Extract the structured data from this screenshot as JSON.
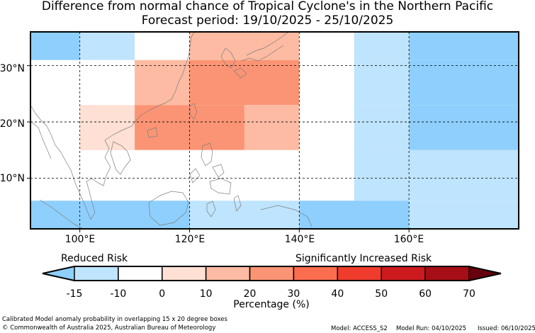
{
  "title": {
    "line1": "Difference from normal chance of Tropical Cyclone's in the Northern Pacific",
    "line2": "Forecast period: 19/10/2025 - 25/10/2025"
  },
  "map": {
    "lat_labels": [
      "30°N",
      "20°N",
      "10°N"
    ],
    "lon_labels": [
      "100°E",
      "120°E",
      "140°E",
      "160°E"
    ],
    "lon_range": [
      91,
      180
    ],
    "lat_range": [
      1,
      36
    ],
    "cells": [
      {
        "lon": [
          91,
          100
        ],
        "lat": [
          31,
          36
        ],
        "bin": -15
      },
      {
        "lon": [
          100,
          110
        ],
        "lat": [
          31,
          36
        ],
        "bin": -10
      },
      {
        "lon": [
          110,
          120
        ],
        "lat": [
          31,
          36
        ],
        "bin": 0
      },
      {
        "lon": [
          120,
          140
        ],
        "lat": [
          31,
          36
        ],
        "bin": 10
      },
      {
        "lon": [
          140,
          150
        ],
        "lat": [
          31,
          36
        ],
        "bin": 0
      },
      {
        "lon": [
          150,
          160
        ],
        "lat": [
          31,
          36
        ],
        "bin": -10
      },
      {
        "lon": [
          160,
          180
        ],
        "lat": [
          31,
          36
        ],
        "bin": -15
      },
      {
        "lon": [
          100,
          110
        ],
        "lat": [
          23,
          31
        ],
        "bin": 0
      },
      {
        "lon": [
          110,
          120
        ],
        "lat": [
          23,
          31
        ],
        "bin": 10
      },
      {
        "lon": [
          120,
          140
        ],
        "lat": [
          23,
          31
        ],
        "bin": 20
      },
      {
        "lon": [
          140,
          150
        ],
        "lat": [
          23,
          31
        ],
        "bin": 0
      },
      {
        "lon": [
          150,
          160
        ],
        "lat": [
          23,
          31
        ],
        "bin": -10
      },
      {
        "lon": [
          160,
          180
        ],
        "lat": [
          23,
          31
        ],
        "bin": -15
      },
      {
        "lon": [
          91,
          100
        ],
        "lat": [
          18,
          23
        ],
        "bin": 0
      },
      {
        "lon": [
          100,
          110
        ],
        "lat": [
          18,
          23
        ],
        "bin": 10
      },
      {
        "lon": [
          110,
          130
        ],
        "lat": [
          18,
          23
        ],
        "bin": 20
      },
      {
        "lon": [
          130,
          140
        ],
        "lat": [
          18,
          23
        ],
        "bin": 10
      },
      {
        "lon": [
          140,
          150
        ],
        "lat": [
          18,
          23
        ],
        "bin": 0
      },
      {
        "lon": [
          150,
          160
        ],
        "lat": [
          18,
          23
        ],
        "bin": -10
      },
      {
        "lon": [
          160,
          180
        ],
        "lat": [
          18,
          23
        ],
        "bin": -15
      },
      {
        "lon": [
          91,
          100
        ],
        "lat": [
          15,
          18
        ],
        "bin": 0
      },
      {
        "lon": [
          100,
          110
        ],
        "lat": [
          15,
          18
        ],
        "bin": 10
      },
      {
        "lon": [
          110,
          130
        ],
        "lat": [
          15,
          18
        ],
        "bin": 20
      },
      {
        "lon": [
          130,
          140
        ],
        "lat": [
          15,
          18
        ],
        "bin": 10
      },
      {
        "lon": [
          140,
          150
        ],
        "lat": [
          15,
          18
        ],
        "bin": 0
      },
      {
        "lon": [
          150,
          160
        ],
        "lat": [
          15,
          18
        ],
        "bin": -10
      },
      {
        "lon": [
          160,
          180
        ],
        "lat": [
          15,
          18
        ],
        "bin": -15
      },
      {
        "lon": [
          110,
          140
        ],
        "lat": [
          6,
          15
        ],
        "bin": 0
      },
      {
        "lon": [
          150,
          160
        ],
        "lat": [
          6,
          15
        ],
        "bin": -10
      },
      {
        "lon": [
          160,
          180
        ],
        "lat": [
          6,
          15
        ],
        "bin": -10
      },
      {
        "lon": [
          91,
          120
        ],
        "lat": [
          1,
          6
        ],
        "bin": -15
      },
      {
        "lon": [
          120,
          140
        ],
        "lat": [
          1,
          6
        ],
        "bin": -10
      },
      {
        "lon": [
          140,
          160
        ],
        "lat": [
          1,
          6
        ],
        "bin": -15
      },
      {
        "lon": [
          160,
          180
        ],
        "lat": [
          1,
          6
        ],
        "bin": -10
      }
    ]
  },
  "legend": {
    "left_caption": "Reduced Risk",
    "right_caption": "Significantly Increased Risk",
    "ticks": [
      "-15",
      "-10",
      "0",
      "10",
      "20",
      "30",
      "40",
      "50",
      "60",
      "70"
    ],
    "label": "Percentage (%)",
    "colors": {
      "-15": "#8ecffd",
      "-10": "#bfe4fd",
      "0": "#ffffff",
      "10_low": "#fee0d4",
      "10": "#fcbba2",
      "20": "#fb9474",
      "30": "#fa6d4f",
      "40": "#ef3c2d",
      "50": "#cd1a1e",
      "60": "#a50f15",
      "70": "#67000d"
    }
  },
  "footer": {
    "line1": "Calibrated Model anomaly probability in overlapping 15 x 20 degree boxes",
    "line2": "© Commonwealth of Australia 2025, Australian Bureau of Meteorology",
    "model": "Model: ACCESS_S2",
    "model_run": "Model Run: 04/10/2025",
    "issued": "Issued: 06/10/2025"
  }
}
